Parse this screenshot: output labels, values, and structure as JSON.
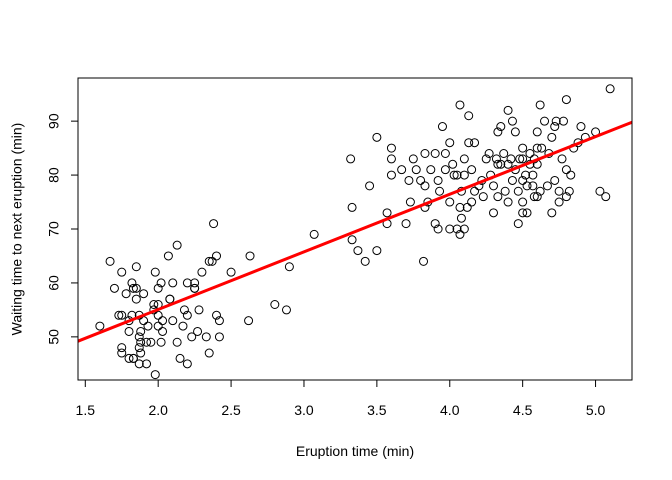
{
  "chart_data": {
    "type": "scatter",
    "title": "",
    "xlabel": "Eruption time (min)",
    "ylabel": "Waiting time to next eruption (min)",
    "xlim": [
      1.45,
      5.25
    ],
    "ylim": [
      42.0,
      98.0
    ],
    "x_ticks": [
      1.5,
      2.0,
      2.5,
      3.0,
      3.5,
      4.0,
      4.5,
      5.0
    ],
    "x_tick_labels": [
      "1.5",
      "2.0",
      "2.5",
      "3.0",
      "3.5",
      "4.0",
      "4.5",
      "5.0"
    ],
    "y_ticks": [
      50,
      60,
      70,
      80,
      90
    ],
    "y_tick_labels": [
      "50",
      "60",
      "70",
      "80",
      "90"
    ],
    "grid": false,
    "legend": "none",
    "point_style": "open-circle",
    "colors": {
      "points": "#000000",
      "fit_line": "#ff0000",
      "axes": "#000000",
      "background": "#ffffff"
    },
    "points": [
      [
        1.6,
        52
      ],
      [
        1.67,
        64
      ],
      [
        1.7,
        59
      ],
      [
        1.73,
        54
      ],
      [
        1.75,
        54
      ],
      [
        1.75,
        62
      ],
      [
        1.75,
        48
      ],
      [
        1.75,
        47
      ],
      [
        1.78,
        58
      ],
      [
        1.8,
        51
      ],
      [
        1.8,
        46
      ],
      [
        1.8,
        53
      ],
      [
        1.82,
        54
      ],
      [
        1.82,
        60
      ],
      [
        1.83,
        59
      ],
      [
        1.83,
        46
      ],
      [
        1.83,
        46
      ],
      [
        1.85,
        63
      ],
      [
        1.85,
        59
      ],
      [
        1.85,
        57
      ],
      [
        1.87,
        54
      ],
      [
        1.87,
        48
      ],
      [
        1.87,
        50
      ],
      [
        1.87,
        45
      ],
      [
        1.88,
        51
      ],
      [
        1.88,
        49
      ],
      [
        1.88,
        47
      ],
      [
        1.9,
        58
      ],
      [
        1.9,
        53
      ],
      [
        1.92,
        49
      ],
      [
        1.92,
        45
      ],
      [
        1.93,
        52
      ],
      [
        1.95,
        49
      ],
      [
        1.97,
        56
      ],
      [
        1.97,
        55
      ],
      [
        1.98,
        62
      ],
      [
        1.98,
        43
      ],
      [
        2.0,
        59
      ],
      [
        2.0,
        56
      ],
      [
        2.0,
        52
      ],
      [
        2.0,
        54
      ],
      [
        2.02,
        60
      ],
      [
        2.02,
        49
      ],
      [
        2.03,
        53
      ],
      [
        2.03,
        51
      ],
      [
        2.07,
        65
      ],
      [
        2.08,
        57
      ],
      [
        2.08,
        57
      ],
      [
        2.1,
        53
      ],
      [
        2.1,
        60
      ],
      [
        2.13,
        49
      ],
      [
        2.13,
        67
      ],
      [
        2.15,
        46
      ],
      [
        2.17,
        52
      ],
      [
        2.18,
        55
      ],
      [
        2.2,
        60
      ],
      [
        2.2,
        54
      ],
      [
        2.2,
        45
      ],
      [
        2.23,
        50
      ],
      [
        2.25,
        60
      ],
      [
        2.25,
        59
      ],
      [
        2.25,
        59
      ],
      [
        2.27,
        51
      ],
      [
        2.28,
        55
      ],
      [
        2.3,
        62
      ],
      [
        2.33,
        50
      ],
      [
        2.35,
        64
      ],
      [
        2.35,
        47
      ],
      [
        2.37,
        64
      ],
      [
        2.38,
        71
      ],
      [
        2.4,
        65
      ],
      [
        2.4,
        54
      ],
      [
        2.42,
        50
      ],
      [
        2.42,
        53
      ],
      [
        2.5,
        62
      ],
      [
        2.62,
        53
      ],
      [
        2.63,
        65
      ],
      [
        2.8,
        56
      ],
      [
        2.88,
        55
      ],
      [
        2.9,
        63
      ],
      [
        3.07,
        69
      ],
      [
        3.32,
        83
      ],
      [
        3.33,
        74
      ],
      [
        3.33,
        68
      ],
      [
        3.37,
        66
      ],
      [
        3.42,
        64
      ],
      [
        3.45,
        78
      ],
      [
        3.5,
        87
      ],
      [
        3.5,
        66
      ],
      [
        3.57,
        73
      ],
      [
        3.57,
        71
      ],
      [
        3.6,
        83
      ],
      [
        3.6,
        85
      ],
      [
        3.6,
        80
      ],
      [
        3.67,
        81
      ],
      [
        3.7,
        71
      ],
      [
        3.72,
        79
      ],
      [
        3.73,
        75
      ],
      [
        3.75,
        83
      ],
      [
        3.77,
        81
      ],
      [
        3.8,
        79
      ],
      [
        3.82,
        64
      ],
      [
        3.83,
        84
      ],
      [
        3.83,
        78
      ],
      [
        3.83,
        74
      ],
      [
        3.85,
        75
      ],
      [
        3.87,
        81
      ],
      [
        3.9,
        84
      ],
      [
        3.9,
        71
      ],
      [
        3.92,
        70
      ],
      [
        3.92,
        79
      ],
      [
        3.93,
        77
      ],
      [
        3.95,
        89
      ],
      [
        3.97,
        84
      ],
      [
        3.97,
        81
      ],
      [
        4.0,
        86
      ],
      [
        4.0,
        70
      ],
      [
        4.0,
        75
      ],
      [
        4.02,
        82
      ],
      [
        4.03,
        80
      ],
      [
        4.05,
        80
      ],
      [
        4.05,
        70
      ],
      [
        4.07,
        93
      ],
      [
        4.07,
        74
      ],
      [
        4.07,
        69
      ],
      [
        4.08,
        77
      ],
      [
        4.08,
        72
      ],
      [
        4.1,
        83
      ],
      [
        4.1,
        80
      ],
      [
        4.1,
        70
      ],
      [
        4.12,
        74
      ],
      [
        4.13,
        91
      ],
      [
        4.13,
        86
      ],
      [
        4.15,
        81
      ],
      [
        4.15,
        75
      ],
      [
        4.17,
        86
      ],
      [
        4.17,
        77
      ],
      [
        4.2,
        78
      ],
      [
        4.22,
        79
      ],
      [
        4.23,
        76
      ],
      [
        4.25,
        83
      ],
      [
        4.27,
        84
      ],
      [
        4.28,
        80
      ],
      [
        4.3,
        78
      ],
      [
        4.3,
        73
      ],
      [
        4.32,
        83
      ],
      [
        4.33,
        82
      ],
      [
        4.33,
        76
      ],
      [
        4.33,
        88
      ],
      [
        4.35,
        89
      ],
      [
        4.35,
        82
      ],
      [
        4.37,
        84
      ],
      [
        4.38,
        77
      ],
      [
        4.4,
        92
      ],
      [
        4.4,
        82
      ],
      [
        4.4,
        75
      ],
      [
        4.42,
        83
      ],
      [
        4.43,
        79
      ],
      [
        4.43,
        90
      ],
      [
        4.45,
        88
      ],
      [
        4.45,
        81
      ],
      [
        4.47,
        77
      ],
      [
        4.47,
        71
      ],
      [
        4.48,
        83
      ],
      [
        4.5,
        85
      ],
      [
        4.5,
        83
      ],
      [
        4.5,
        79
      ],
      [
        4.5,
        73
      ],
      [
        4.5,
        75
      ],
      [
        4.52,
        80
      ],
      [
        4.53,
        73
      ],
      [
        4.53,
        78
      ],
      [
        4.55,
        82
      ],
      [
        4.55,
        84
      ],
      [
        4.57,
        80
      ],
      [
        4.57,
        78
      ],
      [
        4.58,
        83
      ],
      [
        4.58,
        76
      ],
      [
        4.6,
        85
      ],
      [
        4.6,
        88
      ],
      [
        4.6,
        82
      ],
      [
        4.6,
        76
      ],
      [
        4.62,
        93
      ],
      [
        4.62,
        77
      ],
      [
        4.63,
        85
      ],
      [
        4.65,
        90
      ],
      [
        4.67,
        78
      ],
      [
        4.68,
        84
      ],
      [
        4.7,
        87
      ],
      [
        4.7,
        73
      ],
      [
        4.72,
        89
      ],
      [
        4.72,
        79
      ],
      [
        4.73,
        90
      ],
      [
        4.75,
        77
      ],
      [
        4.75,
        75
      ],
      [
        4.77,
        83
      ],
      [
        4.78,
        90
      ],
      [
        4.8,
        94
      ],
      [
        4.8,
        81
      ],
      [
        4.8,
        76
      ],
      [
        4.82,
        77
      ],
      [
        4.83,
        80
      ],
      [
        4.85,
        85
      ],
      [
        4.88,
        86
      ],
      [
        4.9,
        89
      ],
      [
        4.93,
        87
      ],
      [
        5.0,
        88
      ],
      [
        5.03,
        77
      ],
      [
        5.07,
        76
      ],
      [
        5.1,
        96
      ]
    ],
    "fit_line": {
      "x": [
        1.45,
        5.25
      ],
      "y": [
        49.2,
        89.8
      ]
    }
  }
}
